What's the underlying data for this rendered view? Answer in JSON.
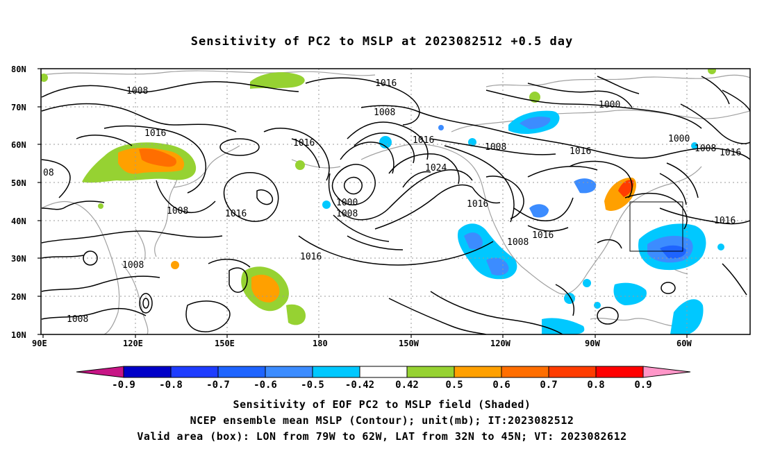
{
  "title": "Sensitivity of PC2 to MSLP at 2023082512 +0.5 day",
  "map": {
    "lat_labels": [
      "80N",
      "70N",
      "60N",
      "50N",
      "40N",
      "30N",
      "20N",
      "10N"
    ],
    "lon_labels": [
      "90E",
      "120E",
      "150E",
      "180",
      "150W",
      "120W",
      "90W",
      "60W"
    ],
    "contour_labels": [
      "1008",
      "1016",
      "1008",
      "1016",
      "1008",
      "1016",
      "1016",
      "1008",
      "1000",
      "1008",
      "1016",
      "1024",
      "1016",
      "1016",
      "1008",
      "1016",
      "1000",
      "1000",
      "1008",
      "1016",
      "1016",
      "1008",
      "1008",
      "1016",
      "08"
    ],
    "colors": {
      "contour": "#000000",
      "coast": "#a0a0a0",
      "grid": "#9a9a9a"
    }
  },
  "colorbar": {
    "labels": [
      "-0.9",
      "-0.8",
      "-0.7",
      "-0.6",
      "-0.5",
      "-0.42",
      "0.42",
      "0.5",
      "0.6",
      "0.7",
      "0.8",
      "0.9"
    ],
    "colors": [
      "#c71585",
      "#0000c8",
      "#1e3cff",
      "#1e64ff",
      "#3c8cff",
      "#00c8ff",
      "#ffffff",
      "#96d232",
      "#ffa000",
      "#ff6e00",
      "#ff3c00",
      "#ff0000",
      "#ff96c8"
    ]
  },
  "captions": [
    "Sensitivity of EOF PC2 to MSLP field (Shaded)",
    "NCEP ensemble mean MSLP (Contour); unit(mb); IT:2023082512",
    "Valid area (box): LON from 79W to 62W, LAT from 32N to 45N; VT: 2023082612"
  ]
}
